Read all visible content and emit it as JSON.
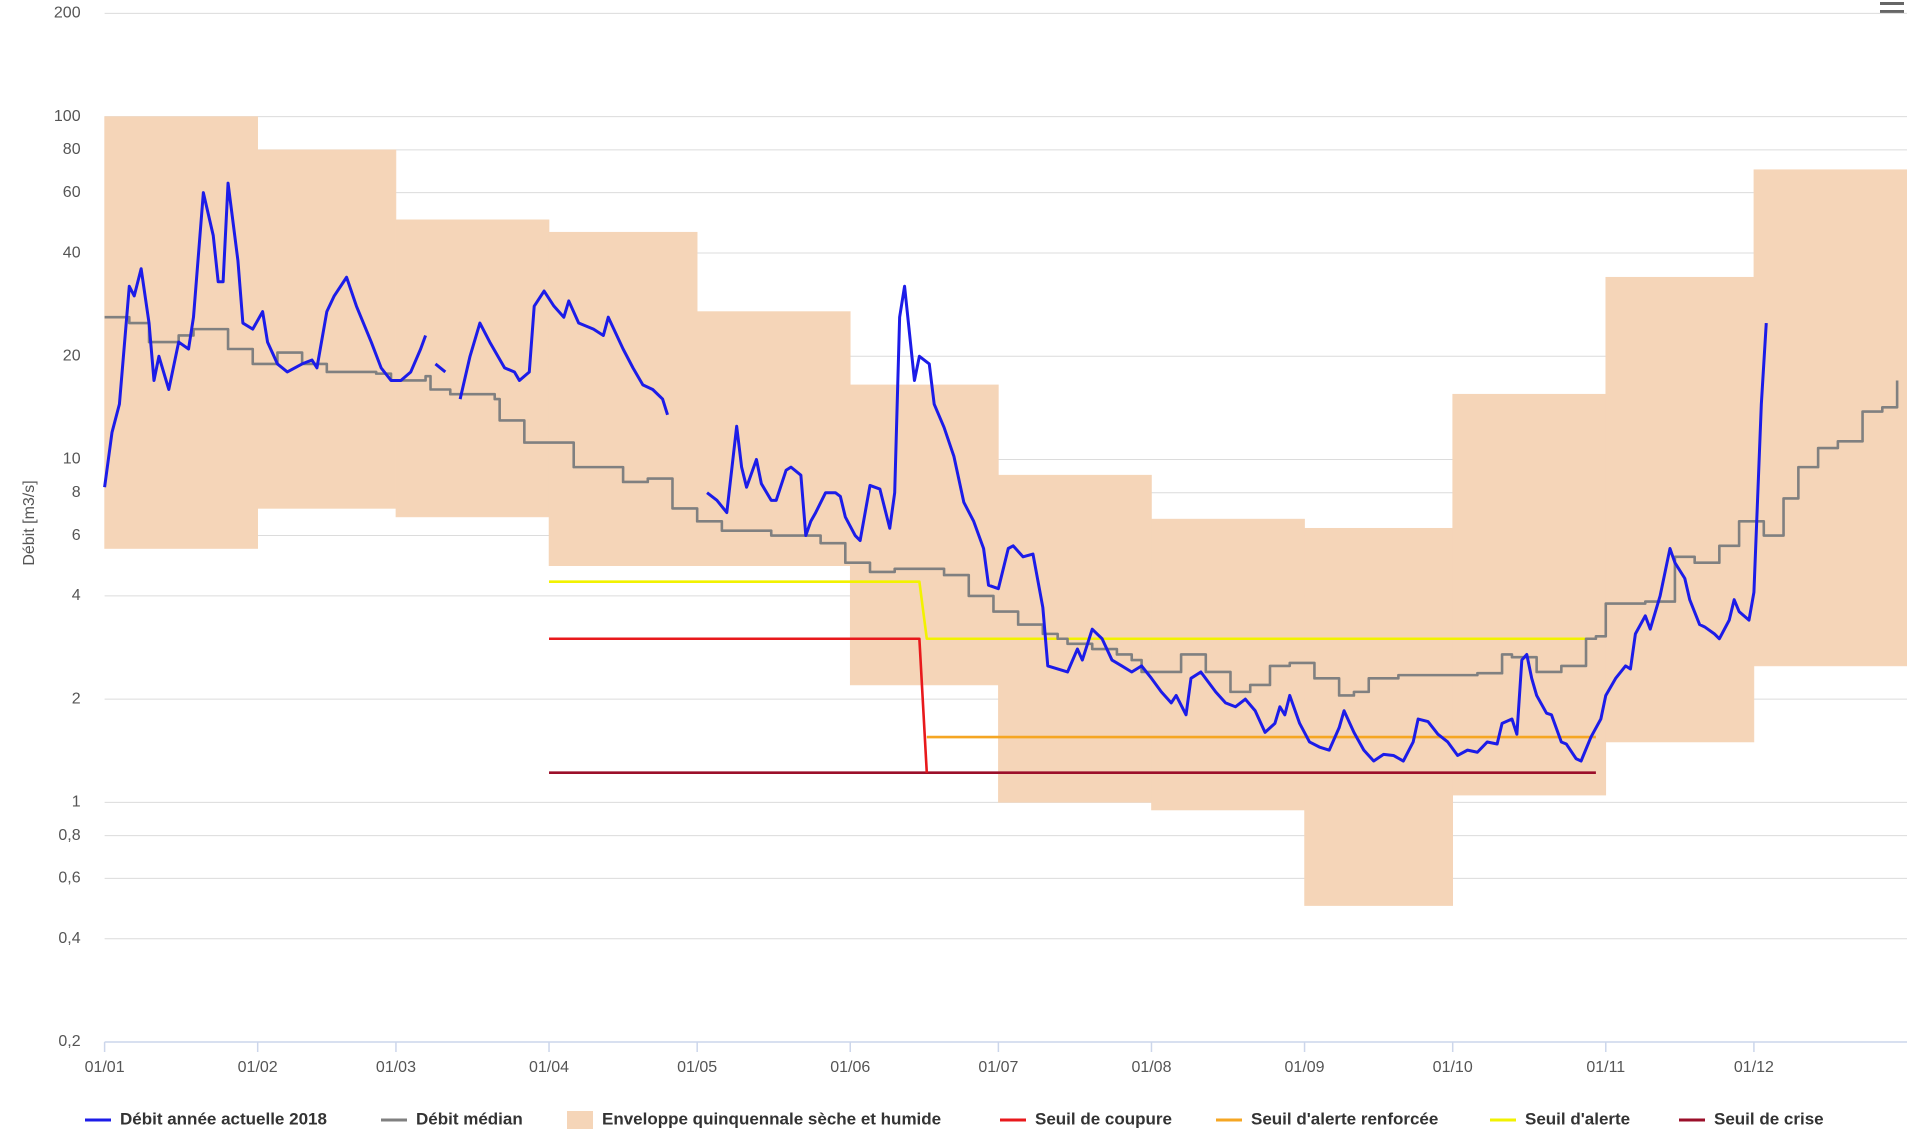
{
  "chart_data": {
    "type": "line",
    "y_label": "Débit [m3/s]",
    "yscale": "log",
    "ylim": [
      0.2,
      200
    ],
    "yticks": [
      {
        "value": 0.2,
        "label": "0,2"
      },
      {
        "value": 0.4,
        "label": "0,4"
      },
      {
        "value": 0.6,
        "label": "0,6"
      },
      {
        "value": 0.8,
        "label": "0,8"
      },
      1,
      2,
      4,
      6,
      8,
      10,
      20,
      40,
      60,
      80,
      100,
      200
    ],
    "xlim": [
      0,
      365
    ],
    "xticks": [
      {
        "value": 0,
        "label": "01/01"
      },
      {
        "value": 31,
        "label": "01/02"
      },
      {
        "value": 59,
        "label": "01/03"
      },
      {
        "value": 90,
        "label": "01/04"
      },
      {
        "value": 120,
        "label": "01/05"
      },
      {
        "value": 151,
        "label": "01/06"
      },
      {
        "value": 181,
        "label": "01/07"
      },
      {
        "value": 212,
        "label": "01/08"
      },
      {
        "value": 243,
        "label": "01/09"
      },
      {
        "value": 273,
        "label": "01/10"
      },
      {
        "value": 304,
        "label": "01/11"
      },
      {
        "value": 334,
        "label": "01/12"
      }
    ],
    "grid": true,
    "legend": "bottom",
    "series": [
      {
        "name": "Débit année actuelle 2018",
        "color": "#1c1ce8",
        "x": [
          0,
          1.5,
          3,
          5,
          6,
          7.4,
          9,
          10,
          11,
          13,
          15,
          17,
          18,
          20,
          22,
          23,
          24,
          25,
          27,
          28,
          30,
          32,
          33,
          35,
          37,
          40,
          42,
          43,
          45,
          46.5,
          49,
          51,
          54,
          56,
          58,
          60,
          62,
          64,
          65,
          66,
          67,
          69,
          70,
          72,
          74,
          76,
          78,
          81,
          83,
          84,
          86,
          87,
          89,
          91,
          93,
          94,
          96,
          99,
          101,
          102,
          105,
          107,
          109,
          111,
          113,
          114,
          118,
          122,
          124,
          126,
          128,
          129,
          130,
          132,
          133,
          135,
          136,
          138,
          139,
          141,
          142,
          143,
          144,
          146,
          148,
          149,
          150,
          152,
          153,
          155,
          157,
          159,
          160,
          161,
          162,
          164,
          165,
          167,
          168,
          170,
          172,
          174,
          176,
          178,
          179,
          181,
          183,
          184,
          186,
          188,
          190,
          191,
          193,
          195,
          197,
          198,
          200,
          202,
          204,
          206,
          208,
          210,
          212,
          214,
          216,
          217,
          219,
          220,
          222,
          225,
          227,
          229,
          231,
          233,
          235,
          237,
          238,
          239,
          240,
          242,
          244,
          246,
          248,
          250,
          251,
          253,
          255,
          257,
          259,
          261,
          263,
          265,
          266,
          268,
          270,
          272,
          274,
          276,
          278,
          280,
          282,
          283,
          285,
          286,
          287,
          288,
          289,
          290,
          292,
          293,
          295,
          296,
          298,
          299,
          301,
          303,
          304,
          306,
          308,
          309,
          310,
          312,
          313,
          315,
          317,
          318,
          320,
          321,
          323,
          324,
          326,
          327,
          329,
          330,
          331,
          333,
          334,
          335.5,
          336.5
        ],
        "values": [
          8.3,
          12,
          14.5,
          32,
          30,
          36,
          25,
          17,
          20,
          16,
          22,
          21,
          26,
          60,
          45,
          33,
          33,
          64,
          38,
          25,
          24,
          27,
          22,
          19,
          18,
          19,
          19.5,
          18.5,
          27,
          30,
          34,
          28,
          22,
          18.5,
          17,
          17,
          18,
          21,
          23,
          null,
          19,
          18,
          null,
          15,
          20,
          25,
          22,
          18.5,
          18,
          17,
          18,
          28,
          31,
          28,
          26,
          29,
          25,
          24,
          23,
          26,
          21,
          18.5,
          16.5,
          16,
          15,
          13.5,
          null,
          8,
          7.6,
          7,
          12.5,
          9.5,
          8.3,
          10,
          8.5,
          7.6,
          7.6,
          9.3,
          9.5,
          9,
          6,
          6.6,
          7,
          8,
          8,
          7.8,
          6.8,
          6,
          5.8,
          8.4,
          8.2,
          6.3,
          8,
          26,
          32,
          17,
          20,
          19,
          14.5,
          12.4,
          10.2,
          7.5,
          6.6,
          5.5,
          4.3,
          4.2,
          5.5,
          5.6,
          5.2,
          5.3,
          3.7,
          2.5,
          2.45,
          2.4,
          2.8,
          2.6,
          3.2,
          3,
          2.6,
          2.5,
          2.4,
          2.5,
          2.3,
          2.1,
          1.95,
          2.05,
          1.8,
          2.3,
          2.4,
          2.1,
          1.95,
          1.9,
          2,
          1.85,
          1.6,
          1.7,
          1.9,
          1.8,
          2.05,
          1.7,
          1.5,
          1.45,
          1.42,
          1.65,
          1.85,
          1.6,
          1.42,
          1.32,
          1.38,
          1.37,
          1.32,
          1.5,
          1.75,
          1.72,
          1.58,
          1.5,
          1.37,
          1.42,
          1.4,
          1.5,
          1.48,
          1.7,
          1.75,
          1.58,
          2.6,
          2.7,
          2.3,
          2.05,
          1.82,
          1.8,
          1.5,
          1.48,
          1.34,
          1.32,
          1.55,
          1.75,
          2.05,
          2.3,
          2.5,
          2.45,
          3.1,
          3.5,
          3.2,
          4,
          5.5,
          5,
          4.5,
          3.9,
          3.3,
          3.25,
          3.1,
          3.0,
          3.4,
          3.9,
          3.6,
          3.4,
          4.1,
          14.5,
          25
        ]
      },
      {
        "name": "Débit médian",
        "color": "#808080",
        "step": true,
        "x": [
          0,
          5,
          9,
          15,
          18,
          25,
          30,
          35,
          40,
          45,
          55,
          58,
          65,
          66,
          70,
          79,
          80,
          85,
          95,
          105,
          110,
          115,
          120,
          125,
          135,
          145,
          150,
          155,
          160,
          170,
          175,
          180,
          185,
          190,
          193,
          195,
          200,
          205,
          208,
          210,
          215,
          218,
          223,
          228,
          232,
          236,
          240,
          245,
          250,
          253,
          256,
          262,
          278,
          283,
          285,
          290,
          295,
          300,
          302,
          304,
          312,
          318,
          322,
          327,
          331,
          336,
          340,
          343,
          347,
          351,
          356,
          360,
          363
        ],
        "values": [
          26,
          25,
          22,
          23,
          24,
          21,
          19,
          20.5,
          19,
          18,
          17.8,
          17,
          17.5,
          16,
          15.5,
          15,
          13,
          11.2,
          9.5,
          8.6,
          8.8,
          7.2,
          6.6,
          6.2,
          6.0,
          5.7,
          5.0,
          4.7,
          4.8,
          4.6,
          4.0,
          3.6,
          3.3,
          3.1,
          3.0,
          2.9,
          2.8,
          2.7,
          2.6,
          2.4,
          2.4,
          2.7,
          2.4,
          2.1,
          2.2,
          2.5,
          2.55,
          2.3,
          2.05,
          2.1,
          2.3,
          2.35,
          2.38,
          2.7,
          2.65,
          2.4,
          2.5,
          3.0,
          3.05,
          3.8,
          3.85,
          5.2,
          5.0,
          5.6,
          6.6,
          6.0,
          7.7,
          9.5,
          10.8,
          11.3,
          13.8,
          14.2,
          17
        ]
      },
      {
        "name": "Enveloppe quinquennale sèche et humide",
        "color": "#f5d5b8",
        "kind": "range",
        "x": [
          0,
          31,
          59,
          90,
          120,
          151,
          181,
          212,
          243,
          273,
          304,
          334
        ],
        "upper": [
          100,
          80,
          50,
          46,
          27,
          16.5,
          9,
          6.7,
          6.3,
          15.5,
          34,
          70
        ],
        "lower": [
          5.5,
          7.2,
          6.8,
          4.9,
          4.9,
          2.2,
          1.0,
          0.95,
          0.5,
          1.05,
          1.5,
          2.5
        ]
      },
      {
        "name": "Seuil de coupure",
        "color": "#e8191c",
        "x": [
          90,
          165,
          166.5
        ],
        "values": [
          3.0,
          3.0,
          1.22
        ]
      },
      {
        "name": "Seuil d'alerte renforcée",
        "color": "#f5a623",
        "x": [
          166.5,
          302
        ],
        "values": [
          1.55,
          1.55
        ]
      },
      {
        "name": "Seuil d'alerte",
        "color": "#f2f200",
        "x": [
          90,
          165,
          166.5,
          301
        ],
        "values": [
          4.4,
          4.4,
          3.0,
          3.0
        ]
      },
      {
        "name": "Seuil de crise",
        "color": "#9b0f2a",
        "x": [
          90,
          302
        ],
        "values": [
          1.22,
          1.22
        ]
      }
    ]
  }
}
